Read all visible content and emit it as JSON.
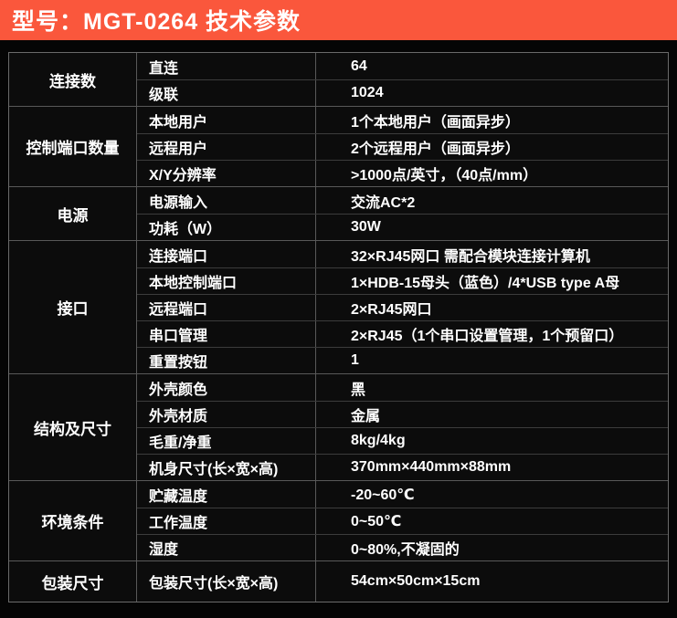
{
  "header": {
    "title": "型号：MGT-0264 技术参数"
  },
  "colors": {
    "accent": "#FA573C",
    "page_background": "#050505",
    "table_background": "#0c0c0c",
    "border": "#595959",
    "text": "#ffffff"
  },
  "table": {
    "groups": [
      {
        "category": "连接数",
        "rows": [
          {
            "label": "直连",
            "value": "64"
          },
          {
            "label": "级联",
            "value": "1024"
          }
        ]
      },
      {
        "category": "控制端口数量",
        "rows": [
          {
            "label": "本地用户",
            "value": "1个本地用户（画面异步）"
          },
          {
            "label": "远程用户",
            "value": "2个远程用户（画面异步）"
          },
          {
            "label": "X/Y分辨率",
            "value": ">1000点/英寸，（40点/mm）"
          }
        ]
      },
      {
        "category": "电源",
        "rows": [
          {
            "label": "电源输入",
            "value": "交流AC*2"
          },
          {
            "label": "功耗（W）",
            "value": "30W"
          }
        ]
      },
      {
        "category": "接口",
        "rows": [
          {
            "label": "连接端口",
            "value": "32×RJ45网口 需配合模块连接计算机"
          },
          {
            "label": "本地控制端口",
            "value": "1×HDB-15母头（蓝色）/4*USB type A母"
          },
          {
            "label": "远程端口",
            "value": "2×RJ45网口"
          },
          {
            "label": "串口管理",
            "value": "2×RJ45（1个串口设置管理，1个预留口）"
          },
          {
            "label": "重置按钮",
            "value": "1"
          }
        ]
      },
      {
        "category": "结构及尺寸",
        "rows": [
          {
            "label": "外壳颜色",
            "value": "黑"
          },
          {
            "label": "外壳材质",
            "value": "金属"
          },
          {
            "label": "毛重/净重",
            "value": "8kg/4kg"
          },
          {
            "label": "机身尺寸(长×宽×高)",
            "value": "370mm×440mm×88mm"
          }
        ]
      },
      {
        "category": "环境条件",
        "rows": [
          {
            "label": "贮藏温度",
            "value": "-20~60℃"
          },
          {
            "label": "工作温度",
            "value": "0~50℃"
          },
          {
            "label": "湿度",
            "value": "0~80%,不凝固的"
          }
        ]
      },
      {
        "category": "包装尺寸",
        "rows": [
          {
            "label": "包装尺寸(长×宽×高)",
            "value": "54cm×50cm×15cm"
          }
        ]
      }
    ]
  }
}
